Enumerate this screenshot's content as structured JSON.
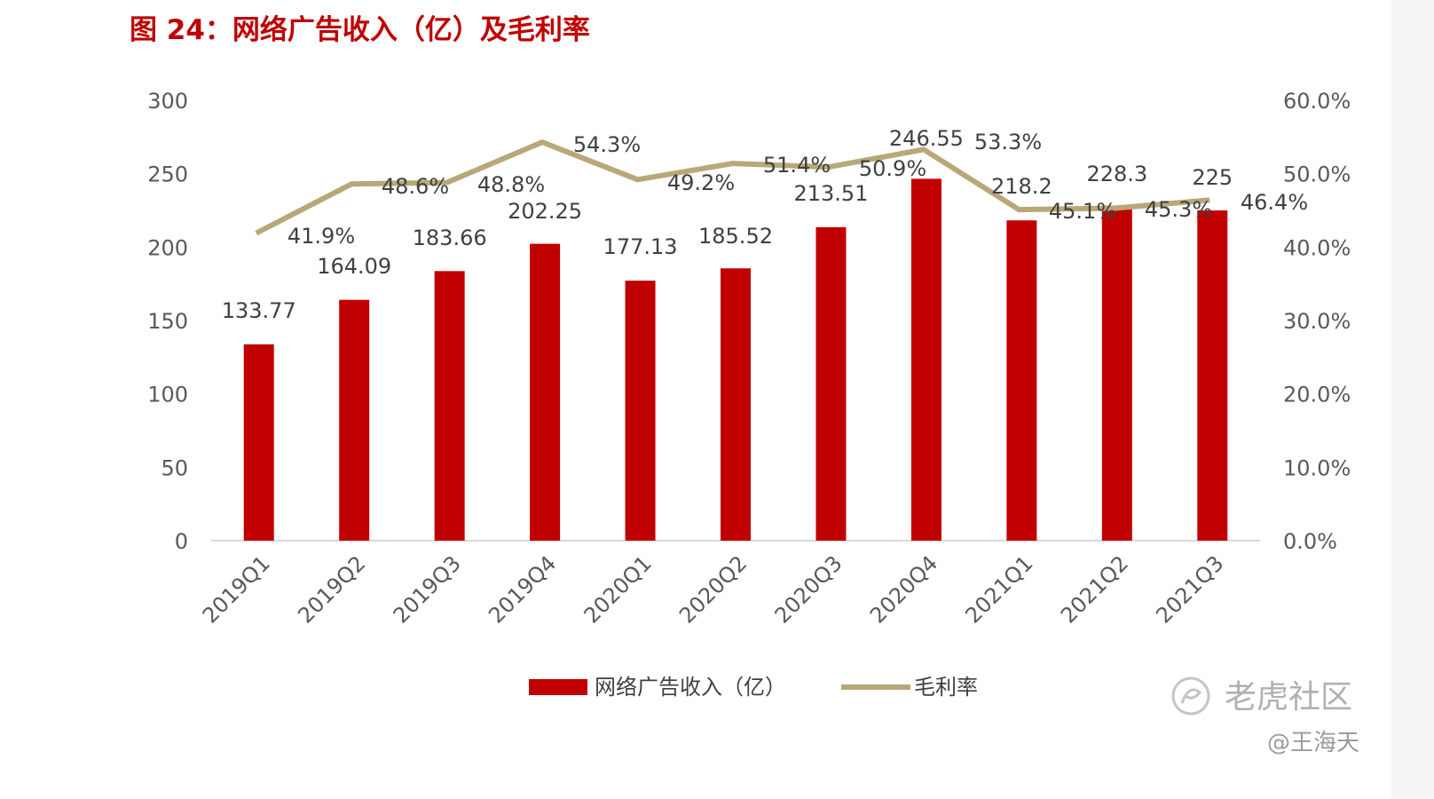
{
  "chart_data": {
    "type": "bar+line",
    "title": "图 24：网络广告收入（亿）及毛利率",
    "categories": [
      "2019Q1",
      "2019Q2",
      "2019Q3",
      "2019Q4",
      "2020Q1",
      "2020Q2",
      "2020Q3",
      "2020Q4",
      "2021Q1",
      "2021Q2",
      "2021Q3"
    ],
    "series": [
      {
        "name": "网络广告收入（亿）",
        "kind": "bar",
        "axis": "left",
        "color": "#c00000",
        "values": [
          133.77,
          164.09,
          183.66,
          202.25,
          177.13,
          185.52,
          213.51,
          246.55,
          218.2,
          228.3,
          225
        ],
        "labels": [
          "133.77",
          "164.09",
          "183.66",
          "202.25",
          "177.13",
          "185.52",
          "213.51",
          "246.55",
          "218.2",
          "228.3",
          "225"
        ]
      },
      {
        "name": "毛利率",
        "kind": "line",
        "axis": "right",
        "color": "#b8a878",
        "values": [
          41.9,
          48.6,
          48.8,
          54.3,
          49.2,
          51.4,
          50.9,
          53.3,
          45.1,
          45.3,
          46.4
        ],
        "labels": [
          "41.9%",
          "48.6%",
          "48.8%",
          "54.3%",
          "49.2%",
          "51.4%",
          "50.9%",
          "53.3%",
          "45.1%",
          "45.3%",
          "46.4%"
        ]
      }
    ],
    "y_left": {
      "ylim": [
        0,
        300
      ],
      "ticks": [
        "0",
        "50",
        "100",
        "150",
        "200",
        "250",
        "300"
      ]
    },
    "y_right": {
      "ylim": [
        0,
        60
      ],
      "ticks": [
        "0.0%",
        "10.0%",
        "20.0%",
        "30.0%",
        "40.0%",
        "50.0%",
        "60.0%"
      ]
    },
    "grid": false,
    "legend_position": "bottom"
  },
  "watermark": {
    "text": "老虎社区",
    "author": "@王海天"
  }
}
